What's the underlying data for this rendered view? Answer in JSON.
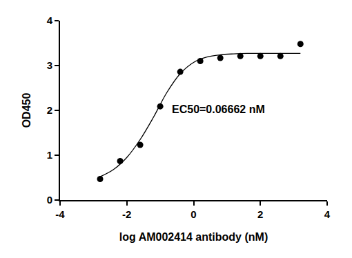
{
  "chart_data": {
    "type": "scatter",
    "x_label": "log AM002414 antibody (nM)",
    "y_label": "OD450",
    "xlim": [
      -4,
      4
    ],
    "xticks": [
      -4,
      -2,
      0,
      2,
      4
    ],
    "ylim": [
      0,
      4
    ],
    "yticks": [
      0,
      1,
      2,
      3,
      4
    ],
    "grid": false,
    "annotations": [
      {
        "text": "EC50=0.06662 nM",
        "x": -0.69,
        "y": 2.03
      }
    ],
    "series": [
      {
        "type": "scatter",
        "marker": "circle",
        "color": "#000000",
        "x": [
          -2.8,
          -2.2,
          -1.6,
          -1.0,
          -0.4,
          0.2,
          0.8,
          1.4,
          2.0,
          2.6,
          3.2
        ],
        "values": [
          0.47,
          0.87,
          1.23,
          2.09,
          2.86,
          3.1,
          3.17,
          3.21,
          3.21,
          3.21,
          3.48
        ]
      },
      {
        "type": "line",
        "line_style": "solid",
        "color": "#000000",
        "x": [
          -2.8,
          -2.4,
          -2.0,
          -1.6,
          -1.2,
          -0.8,
          -0.4,
          0.0,
          0.4,
          0.8,
          1.2,
          1.6,
          2.4,
          3.2
        ],
        "values": [
          0.52,
          0.68,
          0.95,
          1.35,
          1.85,
          2.4,
          2.82,
          3.07,
          3.19,
          3.24,
          3.26,
          3.27,
          3.27,
          3.27
        ]
      }
    ]
  }
}
